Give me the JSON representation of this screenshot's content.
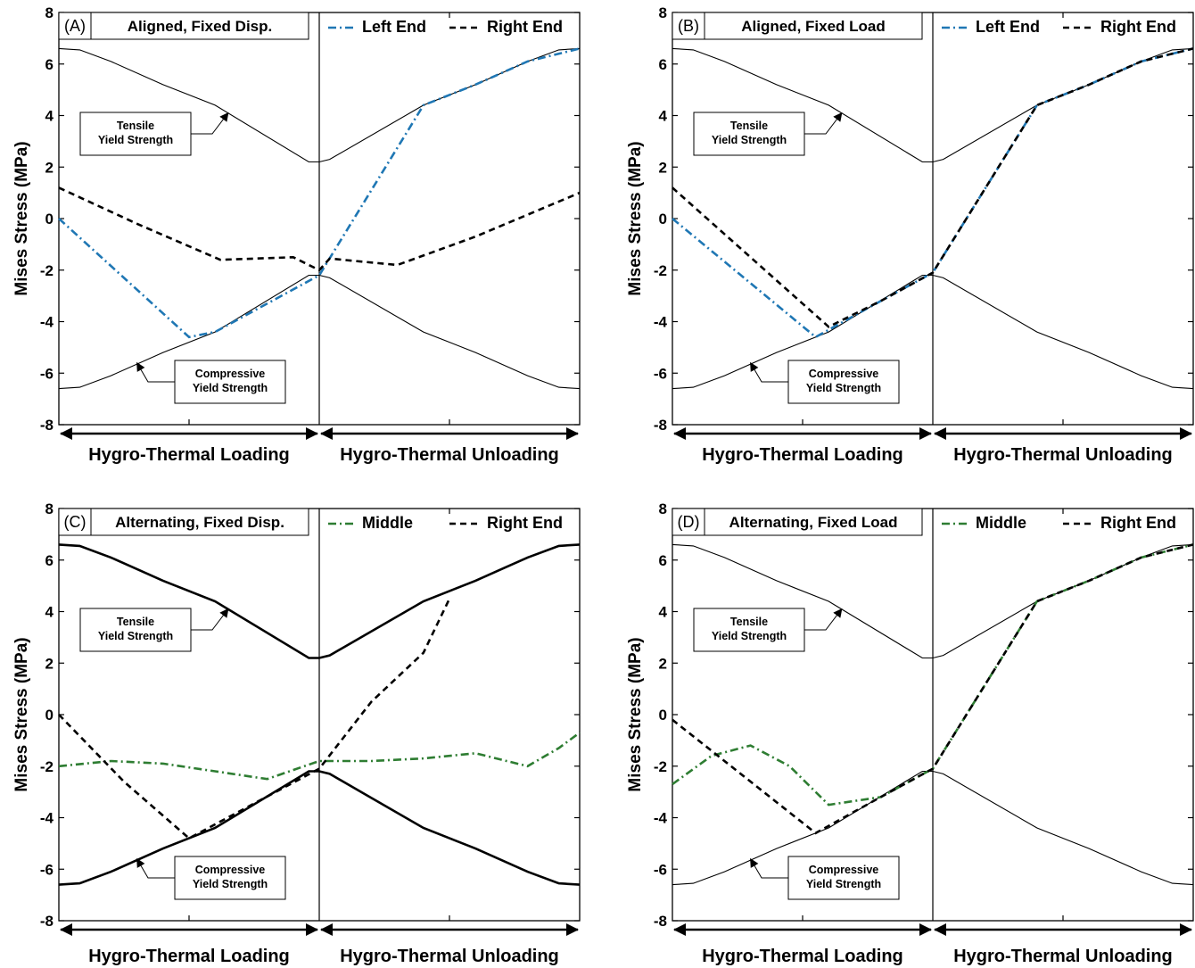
{
  "colors": {
    "blue": "#1f77b4",
    "green": "#2e7d32",
    "black": "#000000"
  },
  "chart_data": [
    {
      "type": "line",
      "panel_label": "(A)",
      "title": "Aligned, Fixed Disp.",
      "ylabel": "Mises Stress (MPa)",
      "ylim": [
        -8,
        8
      ],
      "yticks": [
        "8",
        "6",
        "4",
        "2",
        "0",
        "-2",
        "-4",
        "-6",
        "-8"
      ],
      "xlim": [
        0,
        2
      ],
      "xlabel_left": "Hygro-Thermal Loading",
      "xlabel_right": "Hygro-Thermal Unloading",
      "bold_envelope": false,
      "annotations": {
        "tensile": [
          "Tensile",
          "Yield Strength"
        ],
        "compressive": [
          "Compressive",
          "Yield Strength"
        ]
      },
      "envelope": {
        "x": [
          0,
          0.08,
          0.2,
          0.4,
          0.6,
          0.96,
          1.0,
          1.04,
          1.4,
          1.6,
          1.8,
          1.92,
          2.0
        ],
        "tensile": [
          6.6,
          6.55,
          6.1,
          5.2,
          4.4,
          2.2,
          2.2,
          2.3,
          4.4,
          5.2,
          6.1,
          6.55,
          6.6
        ],
        "compressive": [
          -6.6,
          -6.55,
          -6.1,
          -5.2,
          -4.4,
          -2.2,
          -2.2,
          -2.3,
          -4.4,
          -5.2,
          -6.1,
          -6.55,
          -6.6
        ]
      },
      "series": [
        {
          "name": "Left End",
          "style": "dashdot",
          "color": "#1f77b4",
          "x": [
            0,
            1.0,
            1.0,
            1.4,
            1.6,
            1.8,
            2.0
          ],
          "y": [
            0,
            -4.6,
            -2.2,
            4.4,
            5.2,
            6.1,
            6.6
          ],
          "x_unload_override": [
            1.0,
            1.4,
            1.6,
            1.8,
            2.0
          ],
          "y_unload_override": [
            -2.2,
            4.4,
            5.2,
            6.1,
            6.6
          ]
        },
        {
          "name": "Right End",
          "style": "dash",
          "color": "#000000",
          "x": [
            0,
            0.3,
            0.62,
            0.9,
            1.0,
            1.04,
            1.3,
            1.6,
            2.0
          ],
          "y": [
            1.2,
            -0.2,
            -1.6,
            -1.5,
            -2.0,
            -1.55,
            -1.8,
            -0.7,
            1.0
          ]
        }
      ]
    },
    {
      "type": "line",
      "panel_label": "(B)",
      "title": "Aligned, Fixed Load",
      "ylabel": "Mises Stress (MPa)",
      "ylim": [
        -8,
        8
      ],
      "yticks": [
        "8",
        "6",
        "4",
        "2",
        "0",
        "-2",
        "-4",
        "-6",
        "-8"
      ],
      "xlim": [
        0,
        2
      ],
      "xlabel_left": "Hygro-Thermal Loading",
      "xlabel_right": "Hygro-Thermal Unloading",
      "bold_envelope": false,
      "annotations": {
        "tensile": [
          "Tensile",
          "Yield Strength"
        ],
        "compressive": [
          "Compressive",
          "Yield Strength"
        ]
      },
      "envelope": {
        "x": [
          0,
          0.08,
          0.2,
          0.4,
          0.6,
          0.96,
          1.0,
          1.04,
          1.4,
          1.6,
          1.8,
          1.92,
          2.0
        ],
        "tensile": [
          6.6,
          6.55,
          6.1,
          5.2,
          4.4,
          2.2,
          2.2,
          2.3,
          4.4,
          5.2,
          6.1,
          6.55,
          6.6
        ],
        "compressive": [
          -6.6,
          -6.55,
          -6.1,
          -5.2,
          -4.4,
          -2.2,
          -2.2,
          -2.3,
          -4.4,
          -5.2,
          -6.1,
          -6.55,
          -6.6
        ]
      },
      "series": [
        {
          "name": "Left End",
          "style": "dashdot",
          "color": "#1f77b4",
          "x": [
            0,
            0.55,
            0.8,
            1.0,
            1.4,
            1.6,
            1.8,
            2.0
          ],
          "y": [
            0,
            -4.6,
            -3.2,
            -2.1,
            4.4,
            5.2,
            6.1,
            6.6
          ]
        },
        {
          "name": "Right End",
          "style": "dash",
          "color": "#000000",
          "x": [
            0,
            0.6,
            0.8,
            1.0,
            1.4,
            1.6,
            1.8,
            2.0
          ],
          "y": [
            1.2,
            -4.2,
            -3.2,
            -2.1,
            4.4,
            5.2,
            6.1,
            6.6
          ]
        }
      ]
    },
    {
      "type": "line",
      "panel_label": "(C)",
      "title": "Alternating, Fixed Disp.",
      "ylabel": "Mises Stress (MPa)",
      "ylim": [
        -8,
        8
      ],
      "yticks": [
        "8",
        "6",
        "4",
        "2",
        "0",
        "-2",
        "-4",
        "-6",
        "-8"
      ],
      "xlim": [
        0,
        2
      ],
      "xlabel_left": "Hygro-Thermal Loading",
      "xlabel_right": "Hygro-Thermal Unloading",
      "bold_envelope": true,
      "annotations": {
        "tensile": [
          "Tensile",
          "Yield Strength"
        ],
        "compressive": [
          "Compressive",
          "Yield Strength"
        ]
      },
      "envelope": {
        "x": [
          0,
          0.08,
          0.2,
          0.4,
          0.6,
          0.96,
          1.0,
          1.04,
          1.4,
          1.6,
          1.8,
          1.92,
          2.0
        ],
        "tensile": [
          6.6,
          6.55,
          6.1,
          5.2,
          4.4,
          2.2,
          2.2,
          2.3,
          4.4,
          5.2,
          6.1,
          6.55,
          6.6
        ],
        "compressive": [
          -6.6,
          -6.55,
          -6.1,
          -5.2,
          -4.4,
          -2.2,
          -2.2,
          -2.3,
          -4.4,
          -5.2,
          -6.1,
          -6.55,
          -6.6
        ]
      },
      "series": [
        {
          "name": "Middle",
          "style": "dashdot",
          "color": "#2e7d32",
          "x": [
            0,
            0.2,
            0.4,
            0.6,
            0.8,
            1.0,
            1.2,
            1.4,
            1.6,
            1.8,
            1.92,
            2.0
          ],
          "y": [
            -2.0,
            -1.8,
            -1.9,
            -2.2,
            -2.5,
            -1.8,
            -1.8,
            -1.7,
            -1.5,
            -2.0,
            -1.3,
            -0.7
          ]
        },
        {
          "name": "Right End",
          "style": "dash",
          "color": "#000000",
          "x": [
            0,
            0.25,
            0.5,
            1.0,
            1.2,
            1.4,
            1.5
          ],
          "y": [
            0,
            -2.6,
            -4.8,
            -2.1,
            0.5,
            2.4,
            4.5
          ]
        }
      ]
    },
    {
      "type": "line",
      "panel_label": "(D)",
      "title": "Alternating, Fixed Load",
      "ylabel": "Mises Stress (MPa)",
      "ylim": [
        -8,
        8
      ],
      "yticks": [
        "8",
        "6",
        "4",
        "2",
        "0",
        "-2",
        "-4",
        "-6",
        "-8"
      ],
      "xlim": [
        0,
        2
      ],
      "xlabel_left": "Hygro-Thermal Loading",
      "xlabel_right": "Hygro-Thermal Unloading",
      "bold_envelope": false,
      "annotations": {
        "tensile": [
          "Tensile",
          "Yield Strength"
        ],
        "compressive": [
          "Compressive",
          "Yield Strength"
        ]
      },
      "envelope": {
        "x": [
          0,
          0.08,
          0.2,
          0.4,
          0.6,
          0.96,
          1.0,
          1.04,
          1.4,
          1.6,
          1.8,
          1.92,
          2.0
        ],
        "tensile": [
          6.6,
          6.55,
          6.1,
          5.2,
          4.4,
          2.2,
          2.2,
          2.3,
          4.4,
          5.2,
          6.1,
          6.55,
          6.6
        ],
        "compressive": [
          -6.6,
          -6.55,
          -6.1,
          -5.2,
          -4.4,
          -2.2,
          -2.2,
          -2.3,
          -4.4,
          -5.2,
          -6.1,
          -6.55,
          -6.6
        ]
      },
      "series": [
        {
          "name": "Middle",
          "style": "dashdot",
          "color": "#2e7d32",
          "x": [
            0,
            0.15,
            0.3,
            0.45,
            0.6,
            0.8,
            1.0,
            1.4,
            1.6,
            1.8,
            2.0
          ],
          "y": [
            -2.7,
            -1.6,
            -1.2,
            -2.0,
            -3.5,
            -3.2,
            -2.1,
            4.4,
            5.2,
            6.1,
            6.6
          ]
        },
        {
          "name": "Right End",
          "style": "dash",
          "color": "#000000",
          "x": [
            0,
            0.55,
            0.8,
            1.0,
            1.4,
            1.6,
            1.8,
            2.0
          ],
          "y": [
            -0.2,
            -4.6,
            -3.2,
            -2.1,
            4.4,
            5.2,
            6.1,
            6.6
          ]
        }
      ]
    }
  ]
}
